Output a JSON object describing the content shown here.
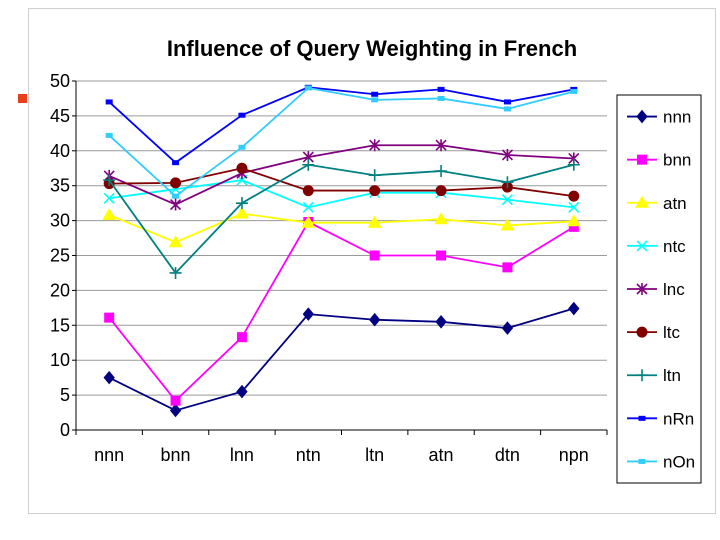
{
  "chart_data": {
    "type": "line",
    "title": "Influence of Query Weighting in French",
    "xlabel": "",
    "ylabel": "",
    "categories": [
      "nnn",
      "bnn",
      "lnn",
      "ntn",
      "ltn",
      "atn",
      "dtn",
      "npn"
    ],
    "ylim": [
      0,
      50
    ],
    "yticks": [
      "0",
      "5",
      "10",
      "15",
      "20",
      "25",
      "30",
      "35",
      "40",
      "45",
      "50"
    ],
    "grid": "horizontal",
    "legend_position": "right",
    "series": [
      {
        "name": "nnn",
        "color": "#000080",
        "marker": "diamond",
        "values": [
          7.5,
          2.8,
          5.5,
          16.6,
          15.8,
          15.5,
          14.6,
          17.4
        ]
      },
      {
        "name": "bnn",
        "color": "#ff00ff",
        "marker": "square",
        "values": [
          16.1,
          4.2,
          13.3,
          29.8,
          25.0,
          25.0,
          23.3,
          29.1
        ]
      },
      {
        "name": "atn",
        "color": "#ffff00",
        "marker": "triangle",
        "values": [
          30.8,
          26.9,
          31.0,
          29.7,
          29.7,
          30.2,
          29.3,
          29.9
        ]
      },
      {
        "name": "ntc",
        "color": "#00ffff",
        "marker": "x",
        "values": [
          33.2,
          34.5,
          35.8,
          31.9,
          34.0,
          34.0,
          33.0,
          31.9
        ]
      },
      {
        "name": "lnc",
        "color": "#800080",
        "marker": "star",
        "values": [
          36.4,
          32.3,
          36.8,
          39.1,
          40.8,
          40.8,
          39.4,
          38.9
        ]
      },
      {
        "name": "ltc",
        "color": "#800000",
        "marker": "circle",
        "values": [
          35.3,
          35.4,
          37.5,
          34.3,
          34.3,
          34.3,
          34.8,
          33.5
        ]
      },
      {
        "name": "ltn",
        "color": "#008080",
        "marker": "plus",
        "values": [
          35.8,
          22.5,
          32.5,
          38.0,
          36.5,
          37.1,
          35.5,
          38.0
        ]
      },
      {
        "name": "nRn",
        "color": "#0000ff",
        "marker": "dash",
        "values": [
          47.0,
          38.3,
          45.1,
          49.1,
          48.1,
          48.8,
          47.0,
          48.8
        ]
      },
      {
        "name": "nOn",
        "color": "#33ccff",
        "marker": "dash",
        "values": [
          42.2,
          33.5,
          40.5,
          49.0,
          47.3,
          47.5,
          46.0,
          48.5
        ]
      }
    ]
  }
}
